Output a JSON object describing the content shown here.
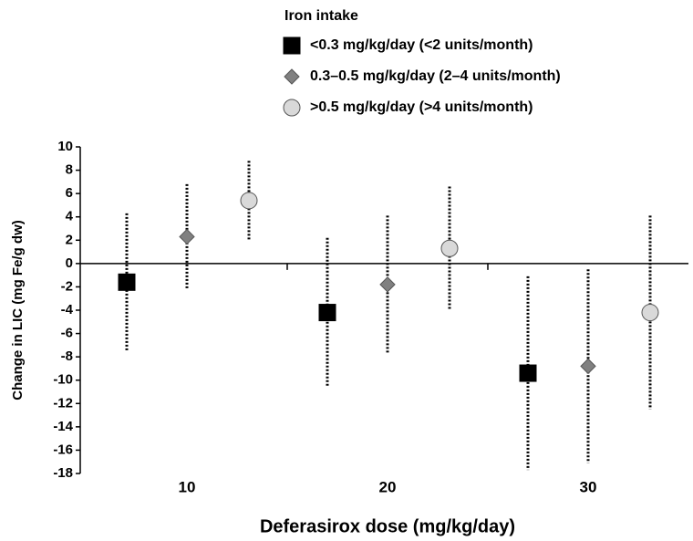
{
  "chart_data": {
    "type": "errorbar-scatter",
    "legend_title": "Iron intake",
    "xlabel": "Deferasirox dose (mg/kg/day)",
    "ylabel": "Change in LIC (mg Fe/g dw)",
    "categories": [
      "10",
      "20",
      "30"
    ],
    "ylim": [
      -18,
      10
    ],
    "yticks": [
      -18,
      -16,
      -14,
      -12,
      -10,
      -8,
      -6,
      -4,
      -2,
      0,
      2,
      4,
      6,
      8,
      10
    ],
    "legend_position": "top",
    "series": [
      {
        "name": "<0.3 mg/kg/day (<2 units/month)",
        "color": "#000000",
        "marker": "square",
        "values": [
          -1.6,
          -4.2,
          -9.4
        ],
        "errors": [
          5.9,
          6.4,
          8.3
        ]
      },
      {
        "name": "0.3–0.5 mg/kg/day (2–4 units/month)",
        "color": "#808080",
        "marker": "diamond",
        "values": [
          2.3,
          -1.8,
          -8.8
        ],
        "errors": [
          4.5,
          5.9,
          8.3
        ]
      },
      {
        "name": ">0.5 mg/kg/day (>4 units/month)",
        "color": "#d9d9d9",
        "marker": "circle",
        "values": [
          5.4,
          1.3,
          -4.2
        ],
        "errors": [
          3.4,
          5.3,
          8.3
        ]
      }
    ]
  }
}
